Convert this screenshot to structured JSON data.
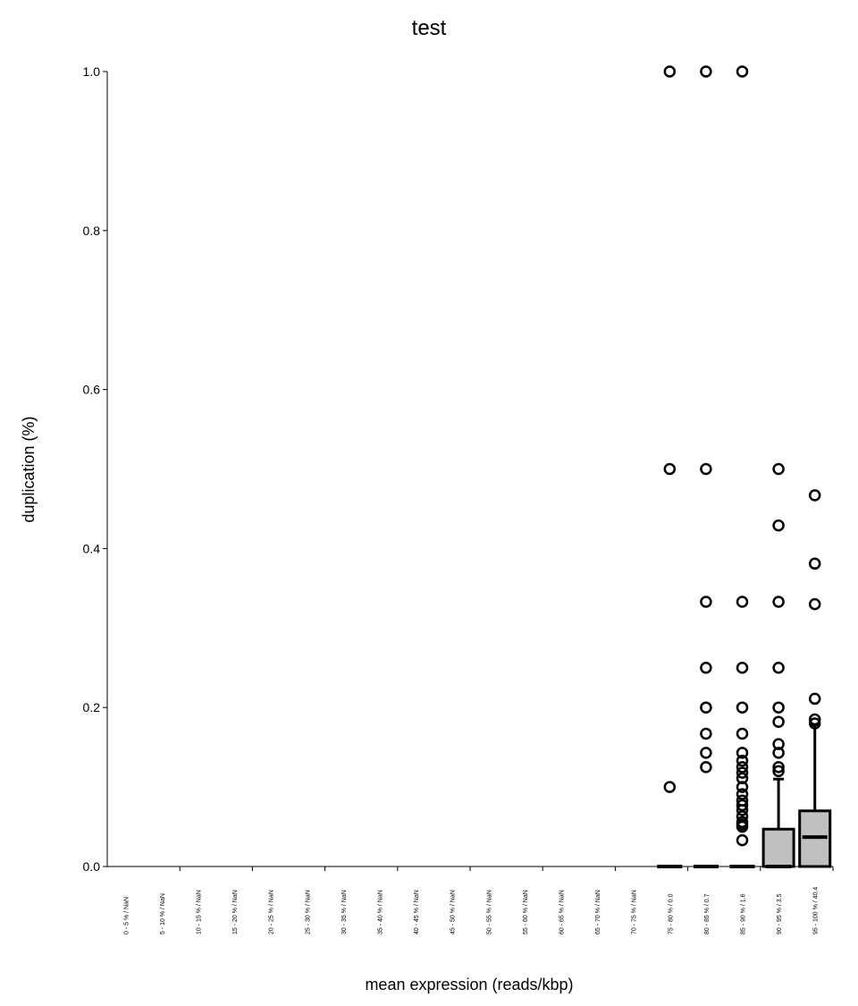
{
  "chart_data": {
    "type": "box",
    "title": "test",
    "xlabel": "mean expression (reads/kbp)",
    "ylabel": "duplication (%)",
    "ylim": [
      0,
      1.0
    ],
    "yticks": [
      "0.0",
      "0.2",
      "0.4",
      "0.6",
      "0.8",
      "1.0"
    ],
    "grid": false,
    "categories": [
      "0 - 5 % / NaN",
      "5 - 10 % / NaN",
      "10 - 15 % / NaN",
      "15 - 20 % / NaN",
      "20 - 25 % / NaN",
      "25 - 30 % / NaN",
      "30 - 35 % / NaN",
      "35 - 40 % / NaN",
      "40 - 45 % / NaN",
      "45 - 50 % / NaN",
      "50 - 55 % / NaN",
      "55 - 60 % / NaN",
      "60 - 65 % / NaN",
      "65 - 70 % / NaN",
      "70 - 75 % / NaN",
      "75 - 80 % / 0.0",
      "80 - 85 % / 0.7",
      "85 - 90 % / 1.6",
      "90 - 95 % / 3.5",
      "95 - 100 % / 40.4"
    ],
    "boxes": [
      {
        "index": 15,
        "q1": 0,
        "median": 0,
        "q3": 0,
        "whisker_low": 0,
        "whisker_high": 0,
        "outliers": [
          1.0,
          0.5,
          0.1
        ]
      },
      {
        "index": 16,
        "q1": 0,
        "median": 0,
        "q3": 0,
        "whisker_low": 0,
        "whisker_high": 0,
        "outliers": [
          1.0,
          0.5,
          0.333,
          0.25,
          0.2,
          0.167,
          0.143,
          0.125
        ]
      },
      {
        "index": 17,
        "q1": 0,
        "median": 0,
        "q3": 0,
        "whisker_low": 0,
        "whisker_high": 0,
        "outliers": [
          1.0,
          0.333,
          0.25,
          0.2,
          0.167,
          0.143,
          0.133,
          0.125,
          0.118,
          0.111,
          0.1,
          0.091,
          0.083,
          0.077,
          0.071,
          0.063,
          0.056,
          0.053,
          0.05,
          0.033
        ]
      },
      {
        "index": 18,
        "q1": 0,
        "median": 0,
        "q3": 0.047,
        "whisker_low": 0,
        "whisker_high": 0.11,
        "outliers": [
          0.5,
          0.429,
          0.333,
          0.25,
          0.2,
          0.182,
          0.154,
          0.143,
          0.125,
          0.12
        ]
      },
      {
        "index": 19,
        "q1": 0,
        "median": 0.037,
        "q3": 0.07,
        "whisker_low": 0,
        "whisker_high": 0.178,
        "outliers": [
          0.467,
          0.381,
          0.33,
          0.211,
          0.185,
          0.18
        ]
      }
    ],
    "box_fill": "#c0c0c0"
  }
}
